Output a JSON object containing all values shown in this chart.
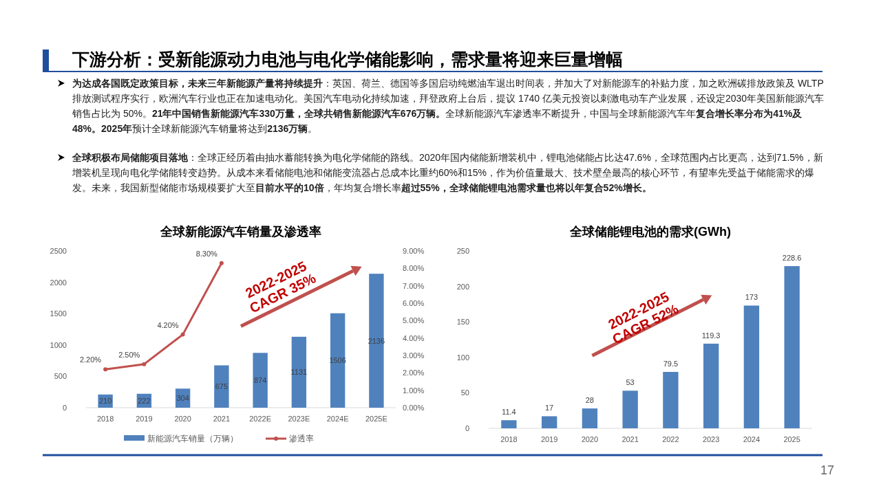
{
  "chart_data": [
    {
      "type": "other",
      "title": "下游分析：受新能源动力电池与电化学储能影响，需求量将迎来巨量增幅",
      "annotations": [
        "**为达成各国既定政策目标，未来三年新能源产量将持续提升**：英国、荷兰、德国等多国启动纯燃油车退出时间表，并加大了对新能源车的补贴力度，加之欧洲碳排放政策及 WLTP 排放测试程序实行，欧洲汽车行业也正在加速电动化。美国汽车电动化持续加速，拜登政府上台后，提议 1740 亿美元投资以刺激电动车产业发展，还设定2030年美国新能源汽车销售占比为 50%。**21年中国销售新能源汽车330万量，全球共销售新能源汽车676万辆。**全球新能源汽车渗透率不断提升，中国与全球新能源汽车年**复合增长率分布为41%及48%。2025年**预计全球新能源汽车销量将达到**2136万辆**。",
        "**全球积极布局储能项目落地**：全球正经历着由抽水蓄能转换为电化学储能的路线。2020年国内储能新增装机中，锂电池储能占比达47.6%，全球范围内占比更高，达到71.5%，新增装机呈现向电化学储能转变趋势。从成本来看储能电池和储能变流器占总成本比重约60%和15%，作为价值量最大、技术壁垒最高的核心环节，有望率先受益于储能需求的爆发。未来，我国新型储能市场规模要扩大至**目前水平的10倍**，年均复合增长率**超过55%，全球储能锂电池需求量也将以年复合52%增长。**",
        "17"
      ]
    },
    {
      "type": "bar",
      "title": "全球新能源汽车销量及渗透率",
      "categories": [
        "2018",
        "2019",
        "2020",
        "2021",
        "2022E",
        "2023E",
        "2024E",
        "2025E"
      ],
      "series": [
        {
          "name": "新能源汽车销量（万辆）",
          "color": "#4f81bd",
          "values": [
            210,
            222,
            304,
            675,
            874,
            1131,
            1506,
            2136
          ]
        },
        {
          "name": "渗透率",
          "type": "line",
          "axis": "y2",
          "color": "#c0504d",
          "values": [
            2.2,
            2.5,
            4.2,
            8.3,
            null,
            null,
            null,
            null
          ],
          "value_labels": [
            "2.20%",
            "2.50%",
            "4.20%",
            "8.30%",
            null,
            null,
            null,
            null
          ]
        }
      ],
      "ylim": [
        0,
        2500
      ],
      "yticks": [
        0,
        500,
        1000,
        1500,
        2000,
        2500
      ],
      "y2lim": [
        0,
        9
      ],
      "y2ticks": [
        {
          "value": 0,
          "label": "0.00%"
        },
        {
          "value": 1,
          "label": "1.00%"
        },
        {
          "value": 2,
          "label": "2.00%"
        },
        {
          "value": 3,
          "label": "3.00%"
        },
        {
          "value": 4,
          "label": "4.00%"
        },
        {
          "value": 5,
          "label": "5.00%"
        },
        {
          "value": 6,
          "label": "6.00%"
        },
        {
          "value": 7,
          "label": "7.00%"
        },
        {
          "value": 8,
          "label": "8.00%"
        },
        {
          "value": 9,
          "label": "9.00%"
        }
      ],
      "data_labels": true,
      "legend": "bottom",
      "marker": "circle",
      "annotations": [
        "2022-2025 CAGR 35%"
      ]
    },
    {
      "type": "bar",
      "title": "全球储能锂电池的需求(GWh)",
      "categories": [
        "2018",
        "2019",
        "2020",
        "2021",
        "2022",
        "2023",
        "2024",
        "2025"
      ],
      "color": "#4f81bd",
      "values": [
        11.4,
        17,
        28,
        53,
        79.5,
        119.3,
        173,
        228.6
      ],
      "ylim": [
        0,
        250
      ],
      "yticks": [
        0,
        50,
        100,
        150,
        200,
        250
      ],
      "data_labels": true,
      "annotations": [
        "2022-2025 CAGR 52%"
      ]
    }
  ]
}
